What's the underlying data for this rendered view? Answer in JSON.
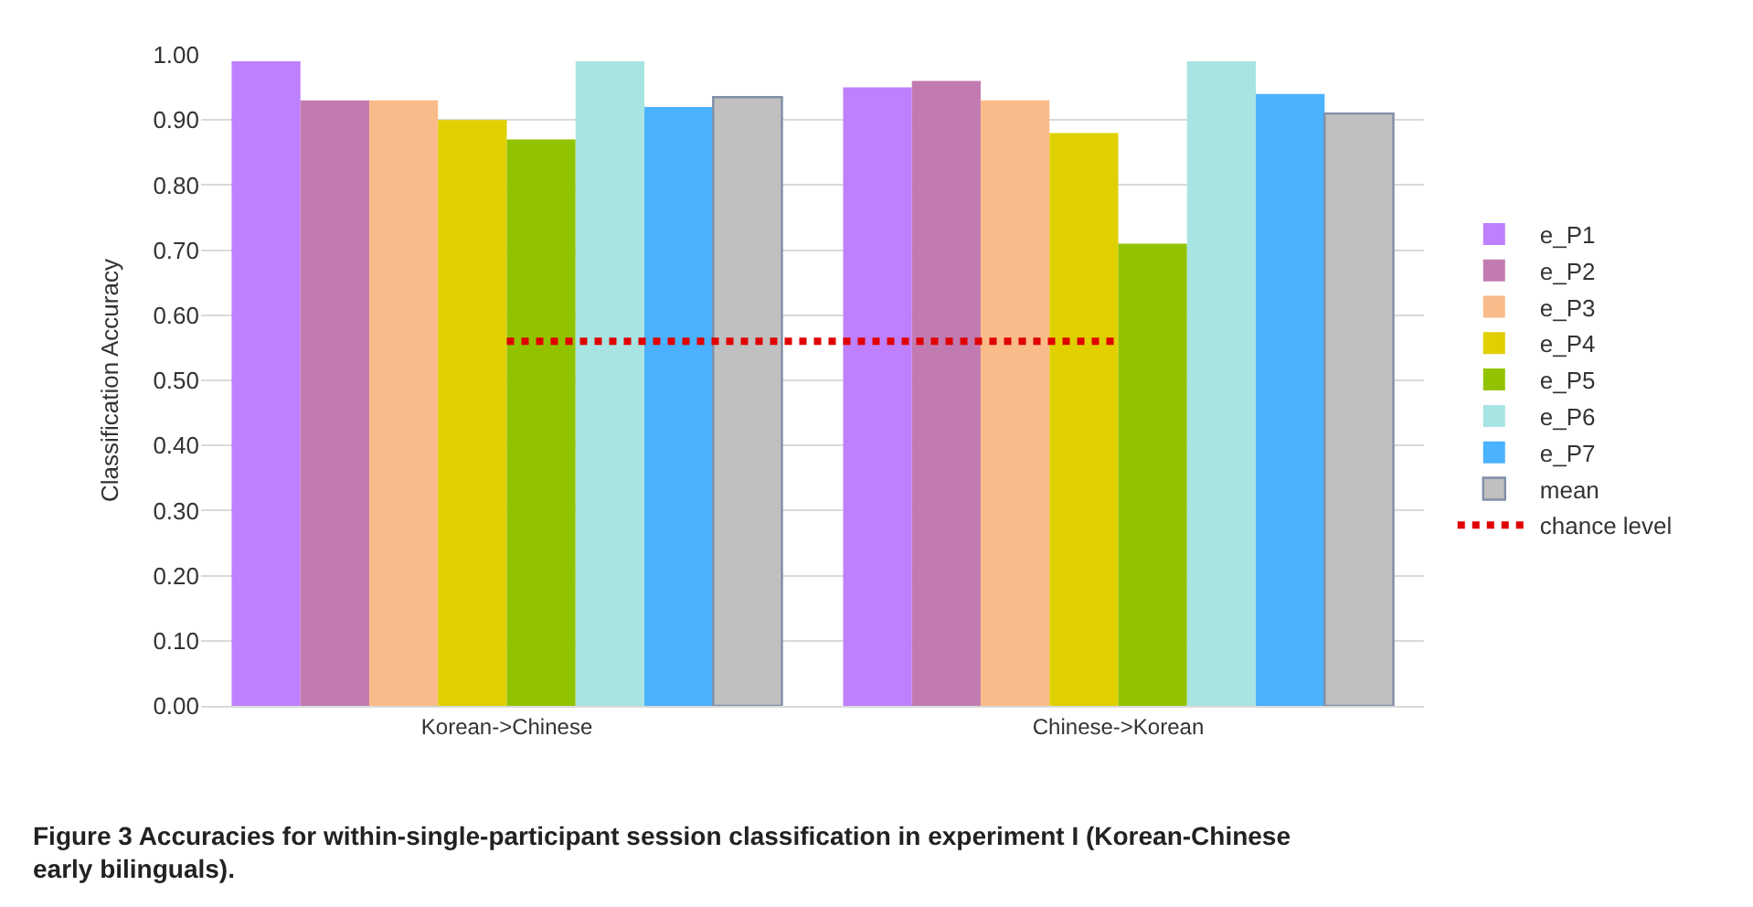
{
  "chart_data": {
    "type": "bar",
    "ylabel": "Classification Accuracy",
    "categories": [
      "Korean->Chinese",
      "Chinese->Korean"
    ],
    "series": [
      {
        "name": "e_P1",
        "color": "#bf80ff",
        "values": [
          0.99,
          0.95
        ]
      },
      {
        "name": "e_P2",
        "color": "#c27bb0",
        "values": [
          0.93,
          0.96
        ]
      },
      {
        "name": "e_P3",
        "color": "#f9bb8a",
        "values": [
          0.93,
          0.93
        ]
      },
      {
        "name": "e_P4",
        "color": "#e0d000",
        "values": [
          0.9,
          0.88
        ]
      },
      {
        "name": "e_P5",
        "color": "#92c300",
        "values": [
          0.87,
          0.71
        ]
      },
      {
        "name": "e_P6",
        "color": "#a8e4e2",
        "values": [
          0.99,
          0.99
        ]
      },
      {
        "name": "e_P7",
        "color": "#4ab2ff",
        "values": [
          0.92,
          0.94
        ]
      },
      {
        "name": "mean",
        "color": "#c0c0c0",
        "values": [
          0.935,
          0.91
        ]
      },
      {
        "name": "chance level",
        "type": "line",
        "color": "#e00000",
        "line_style": "dotted",
        "values": [
          0.56,
          0.56
        ]
      }
    ],
    "ylim": [
      0,
      1.0
    ],
    "yticks": [
      {
        "value": 0,
        "label": "0.00"
      },
      {
        "value": 0.1,
        "label": "0.10"
      },
      {
        "value": 0.2,
        "label": "0.20"
      },
      {
        "value": 0.3,
        "label": "0.30"
      },
      {
        "value": 0.4,
        "label": "0.40"
      },
      {
        "value": 0.5,
        "label": "0.50"
      },
      {
        "value": 0.6,
        "label": "0.60"
      },
      {
        "value": 0.7,
        "label": "0.70"
      },
      {
        "value": 0.8,
        "label": "0.80"
      },
      {
        "value": 0.9,
        "label": "0.90"
      },
      {
        "value": 1.0,
        "label": "1.00"
      }
    ],
    "grid": "y",
    "legend": "right",
    "annotations": [
      "Figure 3 Accuracies for within-single-participant session classification in experiment I (Korean-Chinese early bilinguals)."
    ]
  }
}
